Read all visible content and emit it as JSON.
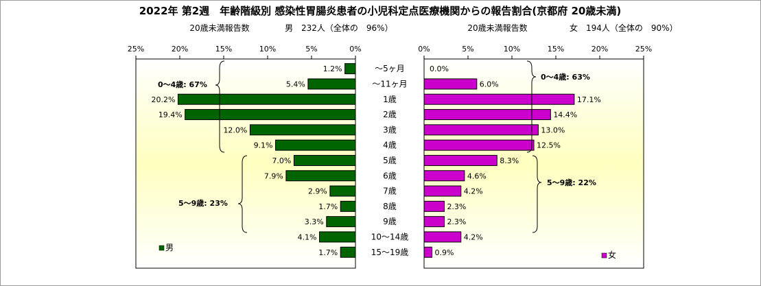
{
  "chart_data": {
    "type": "bar",
    "title": "2022年 第2週　年齢階級別 感染性胃腸炎患者の小児科定点医療機関からの報告割合(京都府 20歳未満)",
    "categories": [
      "～5ヶ月",
      "～11ヶ月",
      "1歳",
      "2歳",
      "3歳",
      "4歳",
      "5歳",
      "6歳",
      "7歳",
      "8歳",
      "9歳",
      "10～14歳",
      "15～19歳"
    ],
    "xlim": [
      0,
      25
    ],
    "x_ticks": [
      "0%",
      "5%",
      "10%",
      "15%",
      "20%",
      "25%"
    ],
    "series": [
      {
        "name": "男",
        "header_label": "20歳未満報告数",
        "header_value": "男　232人（全体の　96%）",
        "color": "#006400",
        "values": [
          1.2,
          5.4,
          20.2,
          19.4,
          12.0,
          9.1,
          7.0,
          7.9,
          2.9,
          1.7,
          3.3,
          4.1,
          1.7
        ],
        "labels": [
          "1.2%",
          "5.4%",
          "20.2%",
          "19.4%",
          "12.0%",
          "9.1%",
          "7.0%",
          "7.9%",
          "2.9%",
          "1.7%",
          "3.3%",
          "4.1%",
          "1.7%"
        ],
        "group_labels": [
          "0～4歳: 67%",
          "5～9歳: 23%"
        ]
      },
      {
        "name": "女",
        "header_label": "20歳未満報告数",
        "header_value": "女　194人（全体の　90%）",
        "color": "#cc00cc",
        "values": [
          0.0,
          6.0,
          17.1,
          14.4,
          13.0,
          12.5,
          8.3,
          4.6,
          4.2,
          2.3,
          2.3,
          4.2,
          0.9
        ],
        "labels": [
          "0.0%",
          "6.0%",
          "17.1%",
          "14.4%",
          "13.0%",
          "12.5%",
          "8.3%",
          "4.6%",
          "4.2%",
          "2.3%",
          "2.3%",
          "4.2%",
          "0.9%"
        ],
        "group_labels": [
          "0～4歳: 63%",
          "5～9歳: 22%"
        ]
      }
    ],
    "background_gradient": [
      "#ffffff",
      "#ffffc0"
    ],
    "legend_placement": "bottom-left / bottom-right"
  }
}
